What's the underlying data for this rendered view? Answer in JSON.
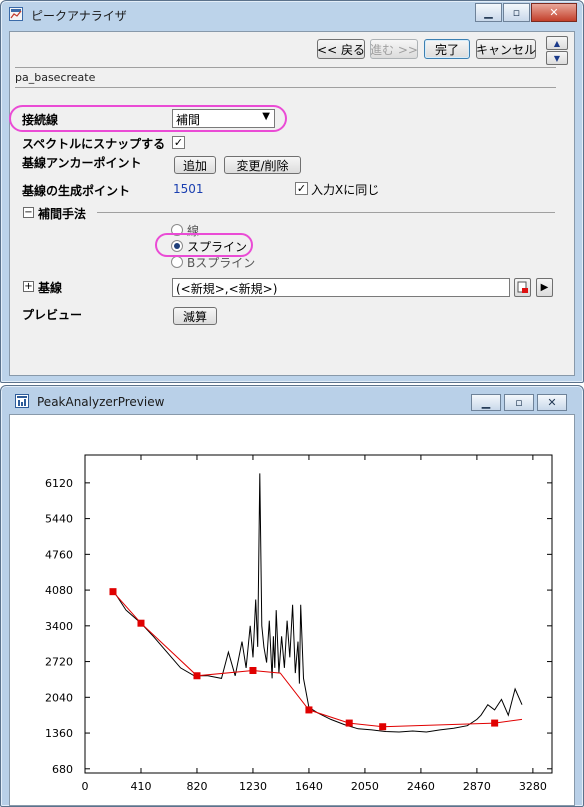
{
  "dialog": {
    "title": "ピークアナライザ",
    "buttons": {
      "back": "<< 戻る",
      "next": "進む >>",
      "finish": "完了",
      "cancel": "キャンセル"
    },
    "page_path": "pa_basecreate",
    "connection": {
      "label": "接続線",
      "value": "補間"
    },
    "snap": {
      "label": "スペクトルにスナップする",
      "checked": true
    },
    "anchor": {
      "label": "基線アンカーポイント",
      "add": "追加",
      "modify": "変更/削除"
    },
    "generate": {
      "label": "基線の生成ポイント",
      "value": "1501",
      "same_as_input": "入力Xに同じ",
      "same_checked": true
    },
    "interp": {
      "section": "補間手法",
      "options": [
        "線",
        "スプライン",
        "Bスプライン"
      ],
      "selected": "スプライン"
    },
    "baseline": {
      "label": "基線",
      "value": "(<新規>,<新規>)"
    },
    "preview": {
      "label": "プレビュー",
      "button": "減算"
    }
  },
  "preview_window": {
    "title": "PeakAnalyzerPreview"
  },
  "colors": {
    "accent_highlight": "#ea4bd5",
    "baseline_curve": "#e00000",
    "anchor_marker": "#e00000",
    "spectrum": "#000000",
    "value_blue": "#1a3fb0"
  },
  "icons": [
    "minimize-icon",
    "maximize-icon",
    "close-icon",
    "up-arrow-icon",
    "down-arrow-icon",
    "pick-icon",
    "play-arrow-icon",
    "expander-collapse-icon",
    "expander-expand-icon",
    "checkbox-check-icon",
    "dropdown-arrow-icon"
  ],
  "chart_data": {
    "type": "line",
    "title": "",
    "xlabel": "",
    "ylabel": "",
    "xlim": [
      0,
      3420
    ],
    "ylim": [
      600,
      6650
    ],
    "xticks": [
      0,
      410,
      820,
      1230,
      1640,
      2050,
      2460,
      2870,
      3280
    ],
    "yticks": [
      680,
      1360,
      2040,
      2720,
      3400,
      4080,
      4760,
      5440,
      6120
    ],
    "grid": false,
    "series": [
      {
        "name": "",
        "x": [
          205,
          300,
          410,
          500,
          600,
          700,
          800,
          900,
          1000,
          1050,
          1100,
          1150,
          1180,
          1210,
          1230,
          1250,
          1265,
          1280,
          1295,
          1310,
          1330,
          1350,
          1370,
          1380,
          1390,
          1400,
          1420,
          1440,
          1460,
          1480,
          1500,
          1520,
          1540,
          1560,
          1570,
          1580,
          1600,
          1640,
          1700,
          1800,
          1900,
          2000,
          2100,
          2200,
          2300,
          2400,
          2500,
          2600,
          2700,
          2800,
          2870,
          2900,
          2950,
          3000,
          3050,
          3100,
          3150,
          3200
        ],
        "y": [
          4080,
          3700,
          3450,
          3200,
          2900,
          2600,
          2450,
          2450,
          2400,
          2900,
          2450,
          3100,
          2600,
          3400,
          2800,
          3900,
          3000,
          6300,
          3400,
          3000,
          2700,
          3500,
          2400,
          3200,
          2600,
          3700,
          2500,
          3200,
          2600,
          3500,
          2800,
          3800,
          2500,
          3100,
          2300,
          3800,
          2400,
          1850,
          1750,
          1620,
          1520,
          1440,
          1420,
          1390,
          1380,
          1400,
          1380,
          1420,
          1450,
          1500,
          1620,
          1700,
          1900,
          1800,
          2000,
          1700,
          2200,
          1900
        ]
      },
      {
        "name": "",
        "x": [
          205,
          410,
          820,
          1230,
          1430,
          1640,
          1935,
          2180,
          3000,
          3200
        ],
        "y": [
          4050,
          3450,
          2450,
          2550,
          2500,
          1800,
          1550,
          1480,
          1550,
          1620
        ]
      }
    ],
    "anchor_points": {
      "x": [
        205,
        410,
        820,
        1230,
        1640,
        1935,
        2180,
        3000
      ],
      "y": [
        4050,
        3450,
        2450,
        2550,
        1800,
        1550,
        1480,
        1550
      ]
    }
  }
}
